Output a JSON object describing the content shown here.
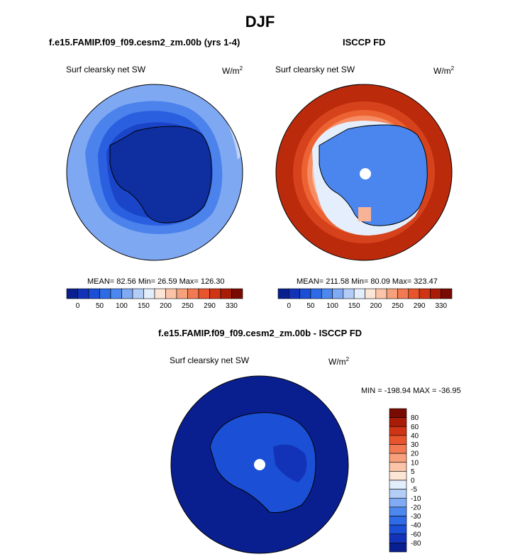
{
  "page": {
    "title": "DJF"
  },
  "chart_data": [
    {
      "type": "heatmap",
      "projection": "south-polar-stereographic",
      "title": "f.e15.FAMIP.f09_f09.cesm2_zm.00b (yrs 1-4)",
      "variable": "Surf clearsky net SW",
      "units_base": "W/m",
      "units_exp": "2",
      "stats_text": "MEAN= 82.56  Min= 26.59  Max= 126.30",
      "stats": {
        "mean": 82.56,
        "min": 26.59,
        "max": 126.3
      },
      "colorbar": {
        "orientation": "horizontal",
        "colors": [
          "#0a1f8f",
          "#1233b8",
          "#1a4fd6",
          "#2f6be6",
          "#4d88ee",
          "#80aaf3",
          "#b3cdf7",
          "#e3eefc",
          "#fde5d6",
          "#fbc4a8",
          "#f7a07c",
          "#f27a52",
          "#e8542c",
          "#cf3515",
          "#a81c08",
          "#7a0b02"
        ],
        "tick_labels": [
          "0",
          "50",
          "100",
          "150",
          "200",
          "250",
          "290",
          "330"
        ]
      }
    },
    {
      "type": "heatmap",
      "projection": "south-polar-stereographic",
      "title": "ISCCP FD",
      "variable": "Surf clearsky net SW",
      "units_base": "W/m",
      "units_exp": "2",
      "stats_text": "MEAN= 211.58  Min= 80.09  Max= 323.47",
      "stats": {
        "mean": 211.58,
        "min": 80.09,
        "max": 323.47
      },
      "colorbar": {
        "orientation": "horizontal",
        "colors": [
          "#0a1f8f",
          "#1233b8",
          "#1a4fd6",
          "#2f6be6",
          "#4d88ee",
          "#80aaf3",
          "#b3cdf7",
          "#e3eefc",
          "#fde5d6",
          "#fbc4a8",
          "#f7a07c",
          "#f27a52",
          "#e8542c",
          "#cf3515",
          "#a81c08",
          "#7a0b02"
        ],
        "tick_labels": [
          "0",
          "50",
          "100",
          "150",
          "200",
          "250",
          "290",
          "330"
        ]
      }
    },
    {
      "type": "heatmap",
      "projection": "south-polar-stereographic",
      "title": "f.e15.FAMIP.f09_f09.cesm2_zm.00b - ISCCP FD",
      "variable": "Surf clearsky net SW",
      "units_base": "W/m",
      "units_exp": "2",
      "stats_text": "MIN = -198.94 MAX = -36.95",
      "stats": {
        "min": -198.94,
        "max": -36.95
      },
      "colorbar": {
        "orientation": "vertical",
        "colors_top_to_bottom": [
          "#7a0b02",
          "#a81c08",
          "#cf3515",
          "#e8542c",
          "#f27a52",
          "#f7a07c",
          "#fbc4a8",
          "#fde5d6",
          "#e3eefc",
          "#b3cdf7",
          "#80aaf3",
          "#4d88ee",
          "#2f6be6",
          "#1a4fd6",
          "#1233b8",
          "#0a1f8f"
        ],
        "tick_labels_top_to_bottom": [
          "80",
          "60",
          "40",
          "30",
          "20",
          "10",
          "5",
          "0",
          "-5",
          "-10",
          "-20",
          "-30",
          "-40",
          "-60",
          "-80"
        ]
      }
    }
  ]
}
